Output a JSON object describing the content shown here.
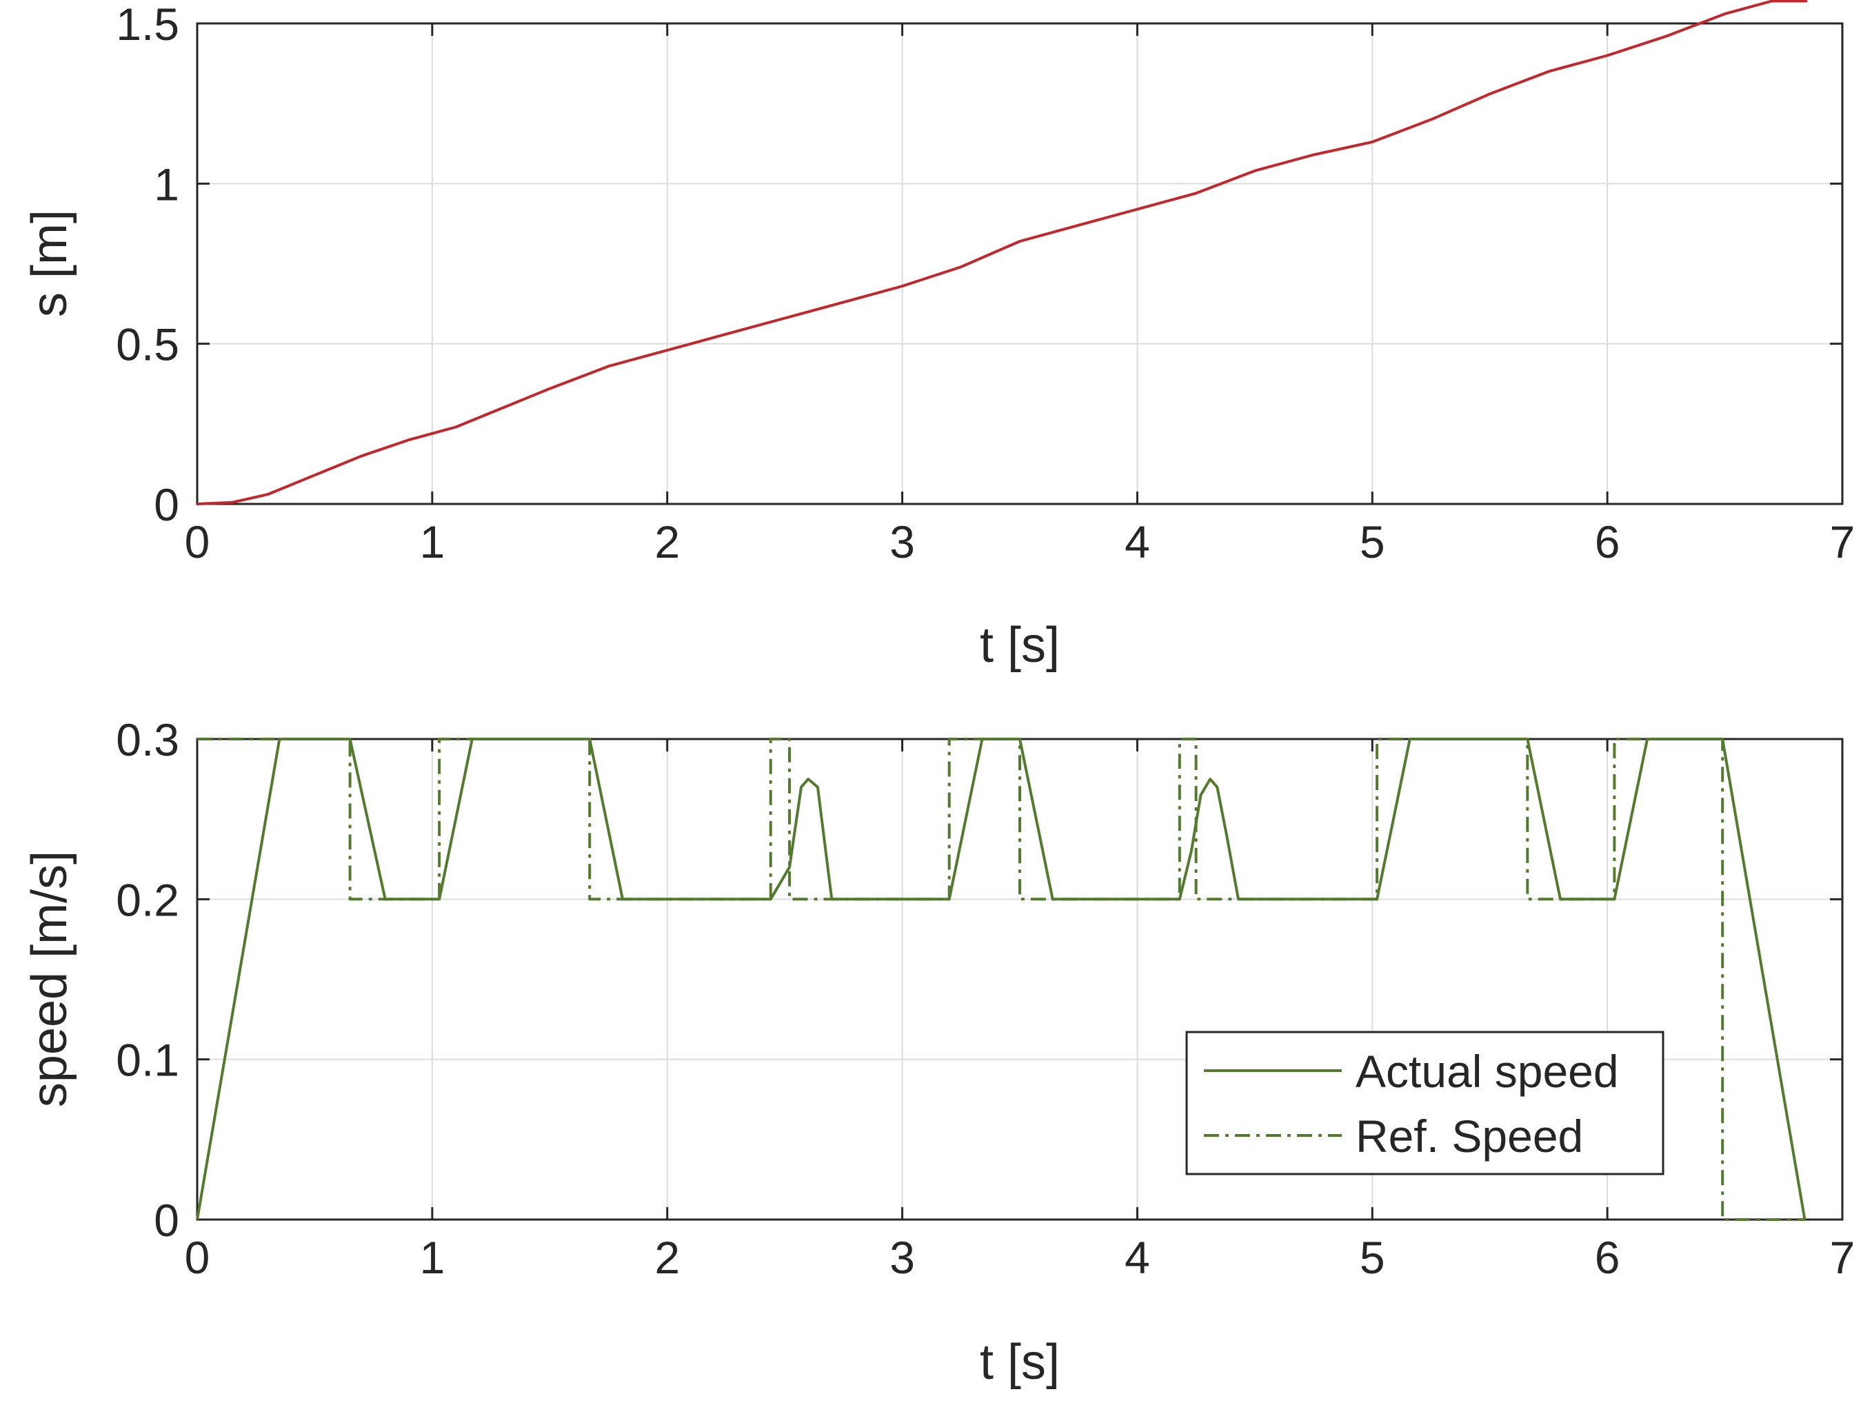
{
  "colors": {
    "distance": "#c1272d",
    "speed": "#547a30",
    "axis": "#262626",
    "grid": "#dcdcdc"
  },
  "chart_data": [
    {
      "type": "line",
      "xlabel": "t [s]",
      "ylabel": "s [m]",
      "xlim": [
        0,
        7
      ],
      "ylim": [
        0,
        1.5
      ],
      "xticks": [
        "0",
        "1",
        "2",
        "3",
        "4",
        "5",
        "6",
        "7"
      ],
      "yticks": [
        "0",
        "0.5",
        "1",
        "1.5"
      ],
      "grid": true,
      "series": [
        {
          "line_style": "solid",
          "x": [
            0,
            0.15,
            0.3,
            0.5,
            0.7,
            0.9,
            1.1,
            1.3,
            1.5,
            1.75,
            2.0,
            2.25,
            2.5,
            2.75,
            3.0,
            3.25,
            3.5,
            3.75,
            4.0,
            4.25,
            4.5,
            4.75,
            5.0,
            5.25,
            5.5,
            5.75,
            6.0,
            6.25,
            6.5,
            6.7,
            6.85
          ],
          "y": [
            0,
            0.005,
            0.03,
            0.09,
            0.15,
            0.2,
            0.24,
            0.3,
            0.36,
            0.43,
            0.48,
            0.53,
            0.58,
            0.63,
            0.68,
            0.74,
            0.82,
            0.87,
            0.92,
            0.97,
            1.04,
            1.09,
            1.13,
            1.2,
            1.28,
            1.35,
            1.4,
            1.46,
            1.53,
            1.57,
            1.57
          ]
        }
      ]
    },
    {
      "type": "line",
      "xlabel": "t [s]",
      "ylabel": "speed [m/s]",
      "xlim": [
        0,
        7
      ],
      "ylim": [
        0,
        0.3
      ],
      "xticks": [
        "0",
        "1",
        "2",
        "3",
        "4",
        "5",
        "6",
        "7"
      ],
      "yticks": [
        "0",
        "0.1",
        "0.2",
        "0.3"
      ],
      "grid": true,
      "legend": "lower-right",
      "series": [
        {
          "name": "Actual speed",
          "line_style": "solid",
          "x": [
            0,
            0.35,
            0.65,
            0.8,
            1.03,
            1.17,
            1.67,
            1.81,
            2.44,
            2.52,
            2.57,
            2.6,
            2.64,
            2.7,
            3.2,
            3.34,
            3.5,
            3.64,
            4.18,
            4.23,
            4.27,
            4.31,
            4.34,
            4.38,
            4.43,
            5.02,
            5.16,
            5.66,
            5.8,
            6.03,
            6.17,
            6.49,
            6.84
          ],
          "y": [
            0,
            0.3,
            0.3,
            0.2,
            0.2,
            0.3,
            0.3,
            0.2,
            0.2,
            0.22,
            0.27,
            0.275,
            0.27,
            0.2,
            0.2,
            0.3,
            0.3,
            0.2,
            0.2,
            0.23,
            0.265,
            0.275,
            0.27,
            0.24,
            0.2,
            0.2,
            0.3,
            0.3,
            0.2,
            0.2,
            0.3,
            0.3,
            0
          ]
        },
        {
          "name": "Ref. Speed",
          "line_style": "dash-dot",
          "x": [
            0,
            0.65,
            0.65,
            1.03,
            1.03,
            1.67,
            1.67,
            2.44,
            2.44,
            2.52,
            2.52,
            3.2,
            3.2,
            3.5,
            3.5,
            4.18,
            4.18,
            4.25,
            4.25,
            5.02,
            5.02,
            5.66,
            5.66,
            6.03,
            6.03,
            6.49,
            6.49,
            6.84
          ],
          "y": [
            0.3,
            0.3,
            0.2,
            0.2,
            0.3,
            0.3,
            0.2,
            0.2,
            0.3,
            0.3,
            0.2,
            0.2,
            0.3,
            0.3,
            0.2,
            0.2,
            0.3,
            0.3,
            0.2,
            0.2,
            0.3,
            0.3,
            0.2,
            0.2,
            0.3,
            0.3,
            0,
            0
          ]
        }
      ]
    }
  ]
}
